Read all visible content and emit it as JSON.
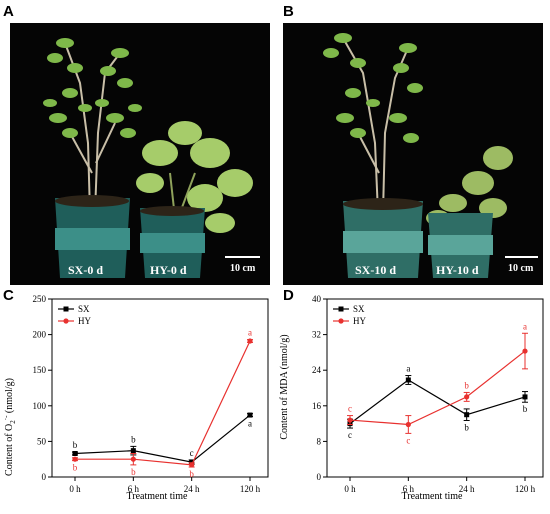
{
  "panels": {
    "a": {
      "letter": "A",
      "plants": [
        {
          "label": "SX-0 d"
        },
        {
          "label": "HY-0 d"
        }
      ],
      "scale": "10 cm"
    },
    "b": {
      "letter": "B",
      "plants": [
        {
          "label": "SX-10 d"
        },
        {
          "label": "HY-10 d"
        }
      ],
      "scale": "10 cm"
    }
  },
  "chart_data": [
    {
      "letter": "C",
      "type": "line",
      "categories": [
        "0 h",
        "6 h",
        "24 h",
        "120 h"
      ],
      "xlabel": "Treatment time",
      "ylabel_main": "Content of O",
      "ylabel_sub": "2",
      "ylabel_sup": "·-",
      "ylabel_tail": " (nmol/g)",
      "ylim": [
        0,
        250
      ],
      "yticks": [
        0,
        50,
        100,
        150,
        200,
        250
      ],
      "legend_position": "top-left",
      "series": [
        {
          "name": "SX",
          "color": "#000000",
          "marker": "square",
          "values": [
            33,
            37,
            21,
            87
          ],
          "errors": [
            2,
            6,
            3,
            2
          ],
          "letters": [
            "b",
            "b",
            "c",
            "a"
          ]
        },
        {
          "name": "HY",
          "color": "#e8312f",
          "marker": "circle",
          "values": [
            25,
            25,
            17,
            191
          ],
          "errors": [
            2,
            8,
            3,
            2
          ],
          "letters": [
            "b",
            "b",
            "b",
            "a"
          ]
        }
      ]
    },
    {
      "letter": "D",
      "type": "line",
      "categories": [
        "0 h",
        "6 h",
        "24 h",
        "120 h"
      ],
      "xlabel": "Treatment time",
      "ylabel": "Content of MDA (nmol/g)",
      "ylim": [
        0,
        40
      ],
      "yticks": [
        0,
        8,
        16,
        24,
        32,
        40
      ],
      "legend_position": "top-left",
      "series": [
        {
          "name": "SX",
          "color": "#000000",
          "marker": "square",
          "values": [
            12,
            21.8,
            14,
            18
          ],
          "errors": [
            1,
            1,
            1.3,
            1.2
          ],
          "letters": [
            "c",
            "a",
            "b",
            "b"
          ]
        },
        {
          "name": "HY",
          "color": "#e8312f",
          "marker": "circle",
          "values": [
            12.8,
            11.8,
            18,
            28.3
          ],
          "errors": [
            1,
            2,
            1,
            4
          ],
          "letters": [
            "c",
            "c",
            "b",
            "a"
          ]
        }
      ]
    }
  ]
}
